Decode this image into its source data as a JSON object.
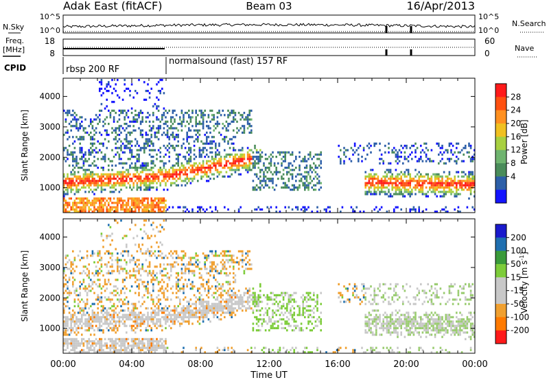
{
  "header": {
    "station": "Adak East (fitACF)",
    "beam": "Beam 03",
    "date": "16/Apr/2013"
  },
  "noise_panel": {
    "left_label": "N.Sky",
    "right_label": "N.Search",
    "ticks_left": [
      "10^5",
      "10^0"
    ],
    "ticks_right": [
      "10^5",
      "10^0"
    ]
  },
  "freq_panel": {
    "left_label_1": "Freq.",
    "left_label_2": "[MHz]",
    "right_label": "Nave",
    "ticks_left": [
      "18",
      "8"
    ],
    "ticks_right": [
      "60",
      "0"
    ]
  },
  "cpid": {
    "label": "CPID",
    "modes": [
      {
        "name": "rbsp 200 RF",
        "start_hour": 0
      },
      {
        "name": "normalsound (fast) 157 RF",
        "start_hour": 6
      }
    ]
  },
  "chart_data": [
    {
      "type": "heatmap",
      "title": "",
      "ylabel": "Slant Range [km]",
      "xlabel": "",
      "x_range_hours": [
        0,
        24
      ],
      "y_range_km": [
        180,
        4600
      ],
      "yticks": [
        "4000",
        "3000",
        "2000",
        "1000"
      ],
      "colorbar": {
        "label": "Power [dB]",
        "ticks": [
          "28",
          "24",
          "20",
          "16",
          "12",
          "8",
          "4"
        ]
      }
    },
    {
      "type": "heatmap",
      "title": "",
      "ylabel": "Slant Range [km]",
      "xlabel": "Time UT",
      "x_range_hours": [
        0,
        24
      ],
      "y_range_km": [
        180,
        4600
      ],
      "yticks": [
        "4000",
        "3000",
        "2000",
        "1000"
      ],
      "xticks": [
        "00:00",
        "04:00",
        "08:00",
        "12:00",
        "16:00",
        "20:00",
        "00:00"
      ],
      "colorbar": {
        "label": "Velocity [m s-1]",
        "label_main": "Velocity [m s",
        "label_sup": "-1",
        "label_end": "]",
        "ticks": [
          "200",
          "100",
          "50",
          "15",
          "-15",
          "-50",
          "-100",
          "-200"
        ]
      }
    }
  ],
  "colors": {
    "power_scale": [
      "#1414ff",
      "#2d5fa8",
      "#4a8c5a",
      "#6fb46f",
      "#a8d040",
      "#f0c020",
      "#ff9020",
      "#ff5010",
      "#ff1a1a"
    ],
    "velocity_scale": [
      "#ff1a1a",
      "#ff7a00",
      "#f0a030",
      "#c8c8c8",
      "#c8c8c8",
      "#7dcc3a",
      "#3a9a3a",
      "#1f6fb0",
      "#1a1acc"
    ]
  }
}
